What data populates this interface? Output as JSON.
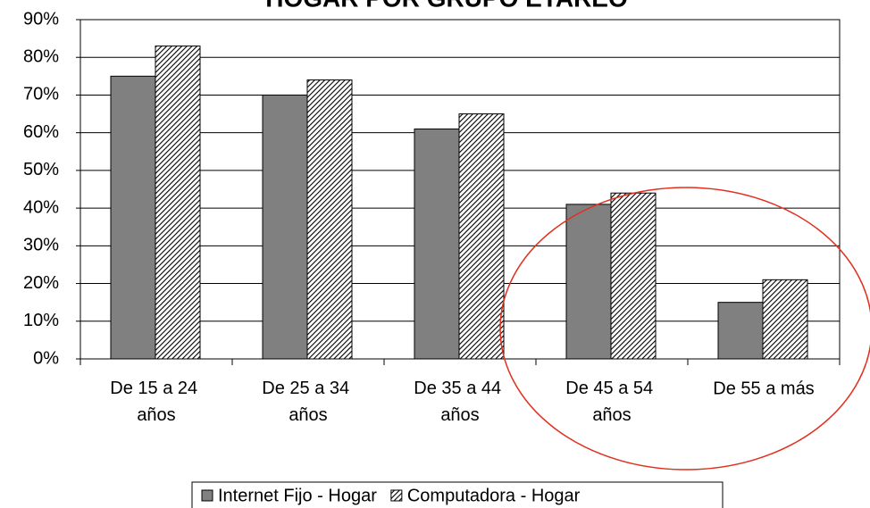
{
  "chart_data": {
    "type": "bar",
    "title": "HOGAR POR GRUPO ETAREO",
    "categories": [
      "De 15 a 24 años",
      "De 25 a 34 años",
      "De 35 a 44 años",
      "De 45 a 54 años",
      "De 55 a más"
    ],
    "series": [
      {
        "name": "Internet Fijo - Hogar",
        "color": "#808080",
        "values": [
          75,
          70,
          61,
          41,
          15
        ]
      },
      {
        "name": "Computadora - Hogar",
        "color": "#ffffff",
        "pattern": "diagonal-hatch",
        "values": [
          83,
          74,
          65,
          44,
          21
        ]
      }
    ],
    "ylim": [
      0,
      90
    ],
    "yticks": [
      {
        "value": 0,
        "label": "0%"
      },
      {
        "value": 10,
        "label": "10%"
      },
      {
        "value": 20,
        "label": "20%"
      },
      {
        "value": 30,
        "label": "30%"
      },
      {
        "value": 40,
        "label": "40%"
      },
      {
        "value": 50,
        "label": "50%"
      },
      {
        "value": 60,
        "label": "60%"
      },
      {
        "value": 70,
        "label": "70%"
      },
      {
        "value": 80,
        "label": "80%"
      },
      {
        "value": 90,
        "label": "90%"
      }
    ],
    "grid": true,
    "legend": "bottom"
  }
}
